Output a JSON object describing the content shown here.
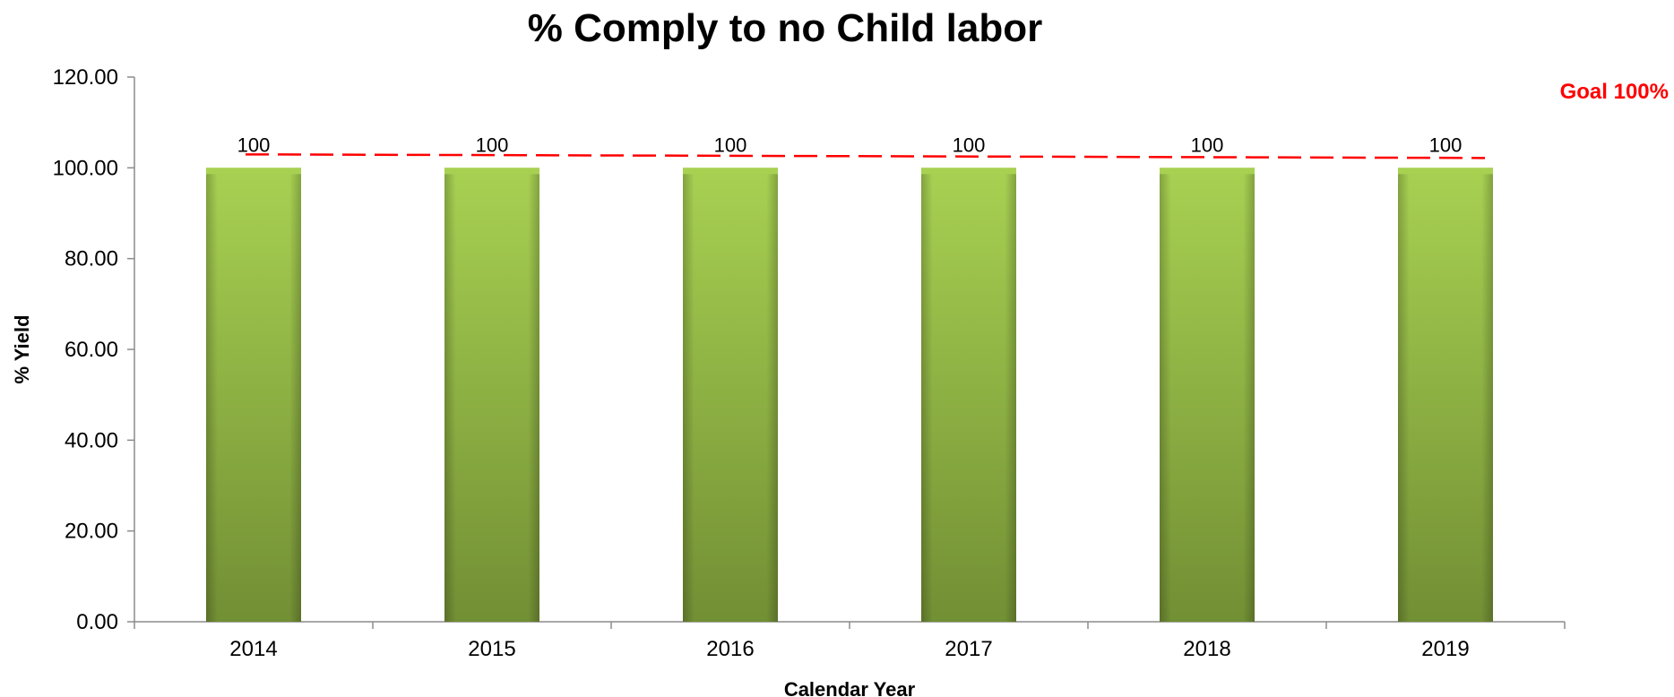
{
  "chart_data": {
    "type": "bar",
    "title": "% Comply to no Child labor",
    "xlabel": "Calendar Year",
    "ylabel": "% Yield",
    "categories": [
      "2014",
      "2015",
      "2016",
      "2017",
      "2018",
      "2019"
    ],
    "values": [
      100,
      100,
      100,
      100,
      100,
      100
    ],
    "data_labels": [
      "100",
      "100",
      "100",
      "100",
      "100",
      "100"
    ],
    "ylim": [
      0,
      120
    ],
    "y_ticks": [
      0,
      20,
      40,
      60,
      80,
      100,
      120
    ],
    "y_tick_labels": [
      "0.00",
      "20.00",
      "40.00",
      "60.00",
      "80.00",
      "100.00",
      "120.00"
    ],
    "grid": false,
    "legend": "none",
    "goal": {
      "label": "Goal 100%",
      "value": 100,
      "color": "#ff0000",
      "style": "dashed"
    },
    "bar_color": "#8db53a",
    "bar_color_light": "#a8d152",
    "bar_color_dark": "#6f8f2c"
  }
}
